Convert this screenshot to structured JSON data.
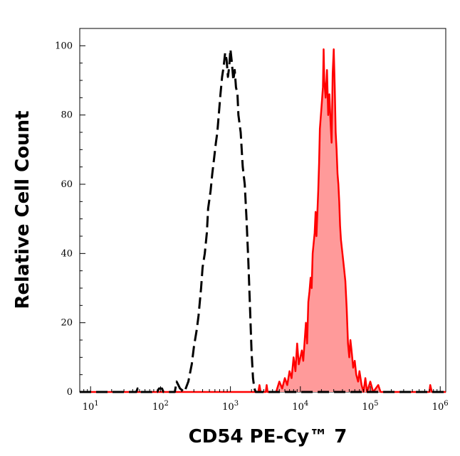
{
  "chart_data": {
    "type": "area",
    "title": "",
    "xlabel": "CD54 PE-Cy™ 7",
    "ylabel": "Relative Cell Count",
    "x_scale": "log",
    "xlim": [
      7,
      1200000
    ],
    "ylim": [
      0,
      105
    ],
    "x_ticks": [
      {
        "value": 10,
        "label": "10",
        "exp": "1"
      },
      {
        "value": 100,
        "label": "10",
        "exp": "2"
      },
      {
        "value": 1000,
        "label": "10",
        "exp": "3"
      },
      {
        "value": 10000,
        "label": "10",
        "exp": "4"
      },
      {
        "value": 100000,
        "label": "10",
        "exp": "5"
      },
      {
        "value": 1000000,
        "label": "10",
        "exp": "6"
      }
    ],
    "y_ticks": [
      0,
      20,
      40,
      60,
      80,
      100
    ],
    "grid": false,
    "series": [
      {
        "style": "dashed",
        "color": "#000000",
        "fill": null,
        "points": [
          [
            7,
            0
          ],
          [
            45,
            0
          ],
          [
            47,
            1
          ],
          [
            50,
            0
          ],
          [
            90,
            0
          ],
          [
            95,
            1
          ],
          [
            105,
            1
          ],
          [
            110,
            0
          ],
          [
            160,
            0
          ],
          [
            170,
            3
          ],
          [
            180,
            2
          ],
          [
            190,
            1
          ],
          [
            220,
            0
          ],
          [
            250,
            3
          ],
          [
            280,
            8
          ],
          [
            300,
            13
          ],
          [
            330,
            18
          ],
          [
            350,
            22
          ],
          [
            380,
            30
          ],
          [
            400,
            36
          ],
          [
            430,
            40
          ],
          [
            460,
            46
          ],
          [
            480,
            53
          ],
          [
            520,
            58
          ],
          [
            550,
            63
          ],
          [
            580,
            67
          ],
          [
            620,
            72
          ],
          [
            650,
            75
          ],
          [
            680,
            80
          ],
          [
            720,
            86
          ],
          [
            760,
            91
          ],
          [
            800,
            94
          ],
          [
            840,
            98
          ],
          [
            880,
            96
          ],
          [
            920,
            91
          ],
          [
            960,
            94
          ],
          [
            1000,
            99
          ],
          [
            1050,
            95
          ],
          [
            1100,
            90
          ],
          [
            1150,
            93
          ],
          [
            1200,
            88
          ],
          [
            1260,
            86
          ],
          [
            1300,
            80
          ],
          [
            1400,
            75
          ],
          [
            1500,
            65
          ],
          [
            1600,
            60
          ],
          [
            1700,
            50
          ],
          [
            1800,
            38
          ],
          [
            1900,
            25
          ],
          [
            2000,
            12
          ],
          [
            2100,
            4
          ],
          [
            2200,
            1
          ],
          [
            2300,
            0
          ],
          [
            1200000,
            0
          ]
        ]
      },
      {
        "style": "solid",
        "color": "#ff0000",
        "fill": "#ff9a9a",
        "points": [
          [
            7,
            0
          ],
          [
            2500,
            0
          ],
          [
            2600,
            2
          ],
          [
            2700,
            0
          ],
          [
            3200,
            0
          ],
          [
            3300,
            2
          ],
          [
            3400,
            0
          ],
          [
            4500,
            0
          ],
          [
            5000,
            3
          ],
          [
            5500,
            1
          ],
          [
            6000,
            4
          ],
          [
            6500,
            2
          ],
          [
            7000,
            6
          ],
          [
            7500,
            4
          ],
          [
            8000,
            10
          ],
          [
            8500,
            6
          ],
          [
            9000,
            14
          ],
          [
            9500,
            8
          ],
          [
            10000,
            10
          ],
          [
            10500,
            12
          ],
          [
            11000,
            9
          ],
          [
            12000,
            20
          ],
          [
            12500,
            14
          ],
          [
            13000,
            26
          ],
          [
            13500,
            29
          ],
          [
            14000,
            33
          ],
          [
            14500,
            30
          ],
          [
            15000,
            40
          ],
          [
            16000,
            46
          ],
          [
            16500,
            52
          ],
          [
            17000,
            45
          ],
          [
            18000,
            58
          ],
          [
            18500,
            66
          ],
          [
            19000,
            76
          ],
          [
            20000,
            82
          ],
          [
            21000,
            88
          ],
          [
            21500,
            99
          ],
          [
            22000,
            90
          ],
          [
            23000,
            85
          ],
          [
            24000,
            93
          ],
          [
            25000,
            80
          ],
          [
            26000,
            86
          ],
          [
            27000,
            78
          ],
          [
            28000,
            72
          ],
          [
            29000,
            92
          ],
          [
            30000,
            99
          ],
          [
            31000,
            88
          ],
          [
            32000,
            75
          ],
          [
            33000,
            70
          ],
          [
            34000,
            63
          ],
          [
            35000,
            60
          ],
          [
            36000,
            55
          ],
          [
            37000,
            48
          ],
          [
            38000,
            44
          ],
          [
            40000,
            40
          ],
          [
            42000,
            36
          ],
          [
            44000,
            32
          ],
          [
            46000,
            24
          ],
          [
            48000,
            14
          ],
          [
            50000,
            10
          ],
          [
            52000,
            15
          ],
          [
            54000,
            12
          ],
          [
            57000,
            7
          ],
          [
            60000,
            9
          ],
          [
            63000,
            5
          ],
          [
            67000,
            3
          ],
          [
            70000,
            6
          ],
          [
            75000,
            2
          ],
          [
            80000,
            0
          ],
          [
            85000,
            4
          ],
          [
            90000,
            0
          ],
          [
            100000,
            3
          ],
          [
            110000,
            0
          ],
          [
            130000,
            2
          ],
          [
            140000,
            0
          ],
          [
            700000,
            0
          ],
          [
            720000,
            2
          ],
          [
            760000,
            0
          ],
          [
            1200000,
            0
          ]
        ]
      }
    ]
  }
}
